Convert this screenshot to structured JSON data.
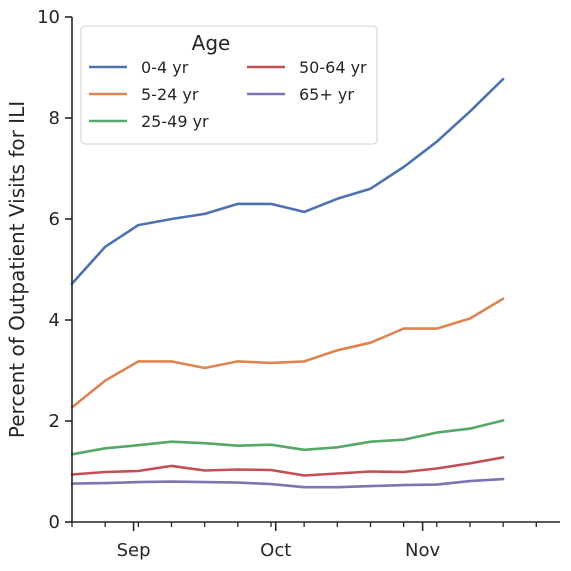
{
  "chart_data": {
    "type": "line",
    "title": "",
    "xlabel": "",
    "ylabel": "Percent of Outpatient Visits for ILI",
    "ylim": [
      0,
      10
    ],
    "yticks": [
      0,
      2,
      4,
      6,
      8,
      10
    ],
    "xlim": [
      "2023-08-19",
      "2023-11-30"
    ],
    "x_major_ticks": [
      {
        "date": "2023-09-01",
        "label": "Sep"
      },
      {
        "date": "2023-10-01",
        "label": "Oct"
      },
      {
        "date": "2023-11-01",
        "label": "Nov"
      }
    ],
    "x_minor_ticks": [
      "2023-08-19",
      "2023-08-26",
      "2023-09-02",
      "2023-09-09",
      "2023-09-16",
      "2023-09-23",
      "2023-09-30",
      "2023-10-07",
      "2023-10-14",
      "2023-10-21",
      "2023-10-28",
      "2023-11-04",
      "2023-11-11",
      "2023-11-18",
      "2023-11-25"
    ],
    "x": [
      "2023-08-19",
      "2023-08-26",
      "2023-09-02",
      "2023-09-09",
      "2023-09-16",
      "2023-09-23",
      "2023-09-30",
      "2023-10-07",
      "2023-10-14",
      "2023-10-21",
      "2023-10-28",
      "2023-11-04",
      "2023-11-11",
      "2023-11-18",
      "2023-11-25"
    ],
    "legend": {
      "title": "Age",
      "placement": "top-left",
      "columns": 2
    },
    "grid": false,
    "series": [
      {
        "name": "0-4 yr",
        "color": "#4c72b0",
        "values": [
          4.72,
          5.45,
          5.88,
          6.0,
          6.1,
          6.3,
          6.3,
          6.14,
          6.4,
          6.6,
          7.03,
          7.53,
          8.13,
          8.77,
          null
        ]
      },
      {
        "name": "5-24 yr",
        "color": "#dd8452",
        "values": [
          2.27,
          2.8,
          3.18,
          3.18,
          3.05,
          3.18,
          3.15,
          3.18,
          3.4,
          3.55,
          3.83,
          3.83,
          4.03,
          4.42,
          null
        ]
      },
      {
        "name": "25-49 yr",
        "color": "#55a868",
        "values": [
          1.34,
          1.46,
          1.52,
          1.59,
          1.56,
          1.51,
          1.53,
          1.43,
          1.48,
          1.59,
          1.63,
          1.77,
          1.85,
          2.01,
          null
        ]
      },
      {
        "name": "50-64 yr",
        "color": "#c44e52",
        "values": [
          0.94,
          0.99,
          1.01,
          1.11,
          1.02,
          1.04,
          1.03,
          0.92,
          0.96,
          1.0,
          0.99,
          1.06,
          1.16,
          1.28,
          null
        ]
      },
      {
        "name": "65+ yr",
        "color": "#8172b3",
        "values": [
          0.76,
          0.77,
          0.79,
          0.8,
          0.79,
          0.78,
          0.75,
          0.69,
          0.69,
          0.71,
          0.73,
          0.74,
          0.81,
          0.85,
          null
        ]
      }
    ]
  }
}
